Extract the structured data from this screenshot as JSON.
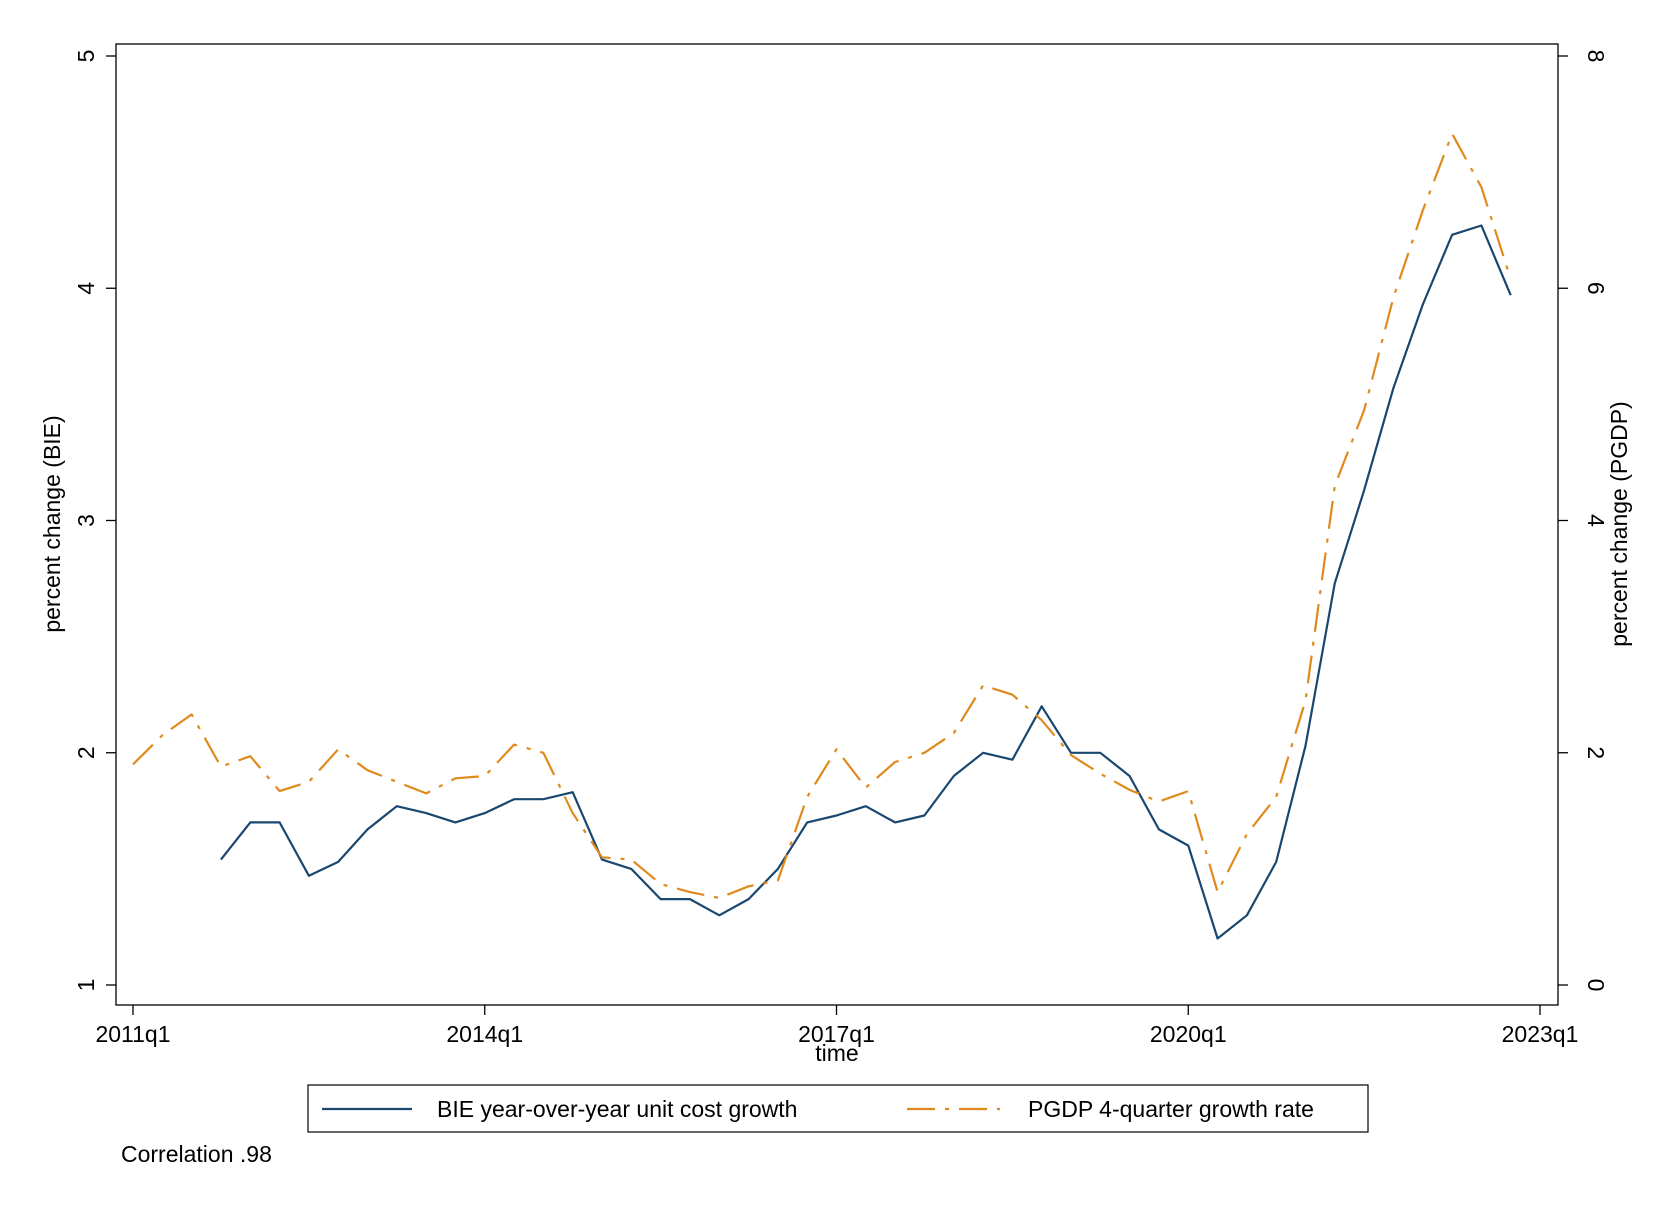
{
  "chart_data": {
    "type": "line",
    "xlabel": "time",
    "ylabel_left": "percent change (BIE)",
    "ylabel_right": "percent change (PGDP)",
    "x_ticks": [
      "2011q1",
      "2014q1",
      "2017q1",
      "2020q1",
      "2023q1"
    ],
    "y_left_ticks": [
      "1",
      "2",
      "3",
      "4",
      "5"
    ],
    "y_right_ticks": [
      "0",
      "2",
      "4",
      "6",
      "8"
    ],
    "y_left_range": [
      1,
      5
    ],
    "y_right_range": [
      0,
      8
    ],
    "x_range": [
      "2011q1",
      "2023q1"
    ],
    "grid": false,
    "legend_position": "bottom",
    "categories": [
      "2011q1",
      "2011q2",
      "2011q3",
      "2011q4",
      "2012q1",
      "2012q2",
      "2012q3",
      "2012q4",
      "2013q1",
      "2013q2",
      "2013q3",
      "2013q4",
      "2014q1",
      "2014q2",
      "2014q3",
      "2014q4",
      "2015q1",
      "2015q2",
      "2015q3",
      "2015q4",
      "2016q1",
      "2016q2",
      "2016q3",
      "2016q4",
      "2017q1",
      "2017q2",
      "2017q3",
      "2017q4",
      "2018q1",
      "2018q2",
      "2018q3",
      "2018q4",
      "2019q1",
      "2019q2",
      "2019q3",
      "2019q4",
      "2020q1",
      "2020q2",
      "2020q3",
      "2020q4",
      "2021q1",
      "2021q2",
      "2021q3",
      "2021q4",
      "2022q1",
      "2022q2",
      "2022q3",
      "2022q4"
    ],
    "series": [
      {
        "name": "BIE year-over-year unit cost growth",
        "axis": "left",
        "color": "#1a476f",
        "dash": "solid",
        "values": [
          null,
          null,
          null,
          1.54,
          1.7,
          1.7,
          1.47,
          1.53,
          1.67,
          1.77,
          1.74,
          1.7,
          1.74,
          1.8,
          1.8,
          1.83,
          1.54,
          1.5,
          1.37,
          1.37,
          1.3,
          1.37,
          1.5,
          1.7,
          1.73,
          1.77,
          1.7,
          1.73,
          1.9,
          2.0,
          1.97,
          2.2,
          2.0,
          2.0,
          1.9,
          1.67,
          1.6,
          1.2,
          1.3,
          1.53,
          2.03,
          2.73,
          3.13,
          3.57,
          3.93,
          4.23,
          4.27,
          3.97
        ]
      },
      {
        "name": "PGDP 4-quarter growth rate",
        "axis": "right",
        "color": "#e08a1e",
        "dash": "dash-dot",
        "values": [
          1.9,
          2.15,
          2.33,
          1.88,
          1.97,
          1.67,
          1.75,
          2.03,
          1.85,
          1.75,
          1.65,
          1.78,
          1.8,
          2.07,
          2.0,
          1.48,
          1.1,
          1.08,
          0.87,
          0.8,
          0.75,
          0.85,
          0.9,
          1.62,
          2.03,
          1.7,
          1.92,
          2.0,
          2.17,
          2.58,
          2.5,
          2.28,
          1.98,
          1.82,
          1.68,
          1.58,
          1.67,
          0.8,
          1.3,
          1.62,
          2.45,
          4.3,
          4.95,
          5.92,
          6.67,
          7.33,
          6.87,
          6.08
        ]
      }
    ],
    "note": "Correlation .98"
  }
}
